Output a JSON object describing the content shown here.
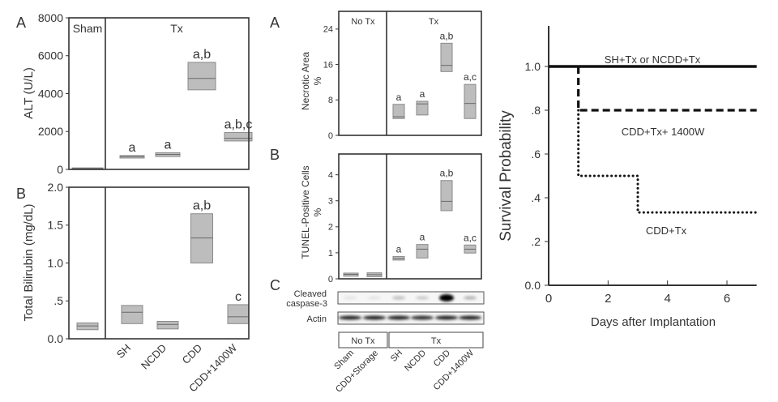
{
  "colors": {
    "box_fill": "#bdbdbd",
    "box_stroke": "#8a8a8a",
    "median": "#6a6a6a",
    "frame": "#333333",
    "text": "#333333"
  },
  "chart_data": [
    {
      "id": "alt",
      "type": "box",
      "panel_label": "A",
      "ylabel": "ALT (U/L)",
      "ylim": [
        0,
        8000
      ],
      "yticks": [
        0,
        2000,
        4000,
        6000,
        8000
      ],
      "ytick_labels": [
        "0",
        "2000",
        "4000",
        "6000",
        "8000"
      ],
      "group_labels": [
        "Sham",
        "Tx"
      ],
      "categories": [
        "Sham",
        "SH",
        "NCDD",
        "CDD",
        "CDD+1400W"
      ],
      "boxes": [
        {
          "q1": 20,
          "median": 50,
          "q3": 80,
          "annotation": ""
        },
        {
          "q1": 600,
          "median": 680,
          "q3": 730,
          "annotation": "a"
        },
        {
          "q1": 680,
          "median": 790,
          "q3": 880,
          "annotation": "a"
        },
        {
          "q1": 4200,
          "median": 4800,
          "q3": 5650,
          "annotation": "a,b"
        },
        {
          "q1": 1500,
          "median": 1640,
          "q3": 1950,
          "annotation": "a,b,c"
        }
      ]
    },
    {
      "id": "bilirubin",
      "type": "box",
      "panel_label": "B",
      "ylabel": "Total Bilirubin (mg/dL)",
      "ylim": [
        0,
        2.0
      ],
      "yticks": [
        0,
        0.5,
        1.0,
        1.5,
        2.0
      ],
      "ytick_labels": [
        "0.0",
        ".5",
        "1.0",
        "1.5",
        "2.0"
      ],
      "categories": [
        "Sham",
        "SH",
        "NCDD",
        "CDD",
        "CDD+1400W"
      ],
      "xtick_labels": [
        "SH",
        "NCDD",
        "CDD",
        "CDD+1400W"
      ],
      "boxes": [
        {
          "q1": 0.12,
          "median": 0.17,
          "q3": 0.21,
          "annotation": ""
        },
        {
          "q1": 0.2,
          "median": 0.35,
          "q3": 0.44,
          "annotation": ""
        },
        {
          "q1": 0.13,
          "median": 0.19,
          "q3": 0.23,
          "annotation": ""
        },
        {
          "q1": 1.0,
          "median": 1.33,
          "q3": 1.65,
          "annotation": "a,b"
        },
        {
          "q1": 0.2,
          "median": 0.29,
          "q3": 0.45,
          "annotation": "c"
        }
      ]
    },
    {
      "id": "necrotic",
      "type": "box",
      "panel_label": "A",
      "ylabel": "Necrotic Area",
      "ylabel2": "%",
      "ylim": [
        0,
        28
      ],
      "yticks": [
        0,
        8,
        16,
        24
      ],
      "ytick_labels": [
        "0",
        "8",
        "16",
        "24"
      ],
      "group_labels": [
        "No Tx",
        "Tx"
      ],
      "categories": [
        "SH",
        "NCDD",
        "CDD",
        "CDD+1400W"
      ],
      "boxes": [
        {
          "q1": 3.8,
          "median": 4.2,
          "q3": 7.0,
          "annotation": "a"
        },
        {
          "q1": 4.6,
          "median": 7.1,
          "q3": 7.7,
          "annotation": "a"
        },
        {
          "q1": 14.4,
          "median": 15.8,
          "q3": 20.8,
          "annotation": "a,b"
        },
        {
          "q1": 3.8,
          "median": 7.2,
          "q3": 11.5,
          "annotation": "a,c"
        }
      ]
    },
    {
      "id": "tunel",
      "type": "box",
      "panel_label": "B",
      "ylabel": "TUNEL-Positive Cells",
      "ylabel2": "%",
      "ylim": [
        0,
        4.8
      ],
      "yticks": [
        0,
        1,
        2,
        3,
        4
      ],
      "ytick_labels": [
        "0",
        "1",
        "2",
        "3",
        "4"
      ],
      "categories": [
        "Sham",
        "CDD+Storage",
        "SH",
        "NCDD",
        "CDD",
        "CDD+1400W"
      ],
      "boxes": [
        {
          "q1": 0.1,
          "median": 0.17,
          "q3": 0.22,
          "annotation": ""
        },
        {
          "q1": 0.08,
          "median": 0.16,
          "q3": 0.23,
          "annotation": ""
        },
        {
          "q1": 0.72,
          "median": 0.78,
          "q3": 0.86,
          "annotation": "a"
        },
        {
          "q1": 0.8,
          "median": 1.14,
          "q3": 1.32,
          "annotation": "a"
        },
        {
          "q1": 2.62,
          "median": 2.98,
          "q3": 3.78,
          "annotation": "a,b"
        },
        {
          "q1": 0.99,
          "median": 1.14,
          "q3": 1.3,
          "annotation": "a,c"
        }
      ]
    },
    {
      "id": "survival",
      "type": "line",
      "ylabel": "Survival Probability",
      "xlabel": "Days after Implantation",
      "xlim": [
        0,
        7
      ],
      "ylim": [
        0,
        1.2
      ],
      "xticks": [
        0,
        2,
        4,
        6
      ],
      "xtick_labels": [
        "0",
        "2",
        "4",
        "6"
      ],
      "yticks": [
        0,
        0.2,
        0.4,
        0.6,
        0.8,
        1.0
      ],
      "ytick_labels": [
        "0.0",
        ".2",
        ".4",
        ".6",
        ".8",
        "1.0"
      ],
      "series": [
        {
          "name": "SH+Tx or NCDD+Tx",
          "style": "solid",
          "x": [
            0,
            7
          ],
          "y": [
            1.0,
            1.0
          ]
        },
        {
          "name": "CDD+Tx+ 1400W",
          "style": "dashed",
          "x": [
            1,
            1,
            7
          ],
          "y": [
            1.0,
            0.8,
            0.8
          ]
        },
        {
          "name": "CDD+Tx",
          "style": "dotted",
          "x": [
            1,
            1,
            3,
            3,
            7
          ],
          "y": [
            0.8,
            0.5,
            0.5,
            0.333,
            0.333
          ]
        }
      ]
    }
  ],
  "blot": {
    "panel_label": "C",
    "rows": [
      {
        "label_line1": "Cleaved",
        "label_line2": "caspase-3",
        "intensities": [
          0.03,
          0.03,
          0.2,
          0.15,
          1.0,
          0.25
        ]
      },
      {
        "label_line1": "Actin",
        "label_line2": "",
        "intensities": [
          0.85,
          0.85,
          0.85,
          0.8,
          0.85,
          0.85
        ]
      }
    ],
    "group_labels": [
      "No Tx",
      "Tx"
    ],
    "lane_labels": [
      "Sham",
      "CDD+Storage",
      "SH",
      "NCDD",
      "CDD",
      "CDD+1400W"
    ]
  }
}
